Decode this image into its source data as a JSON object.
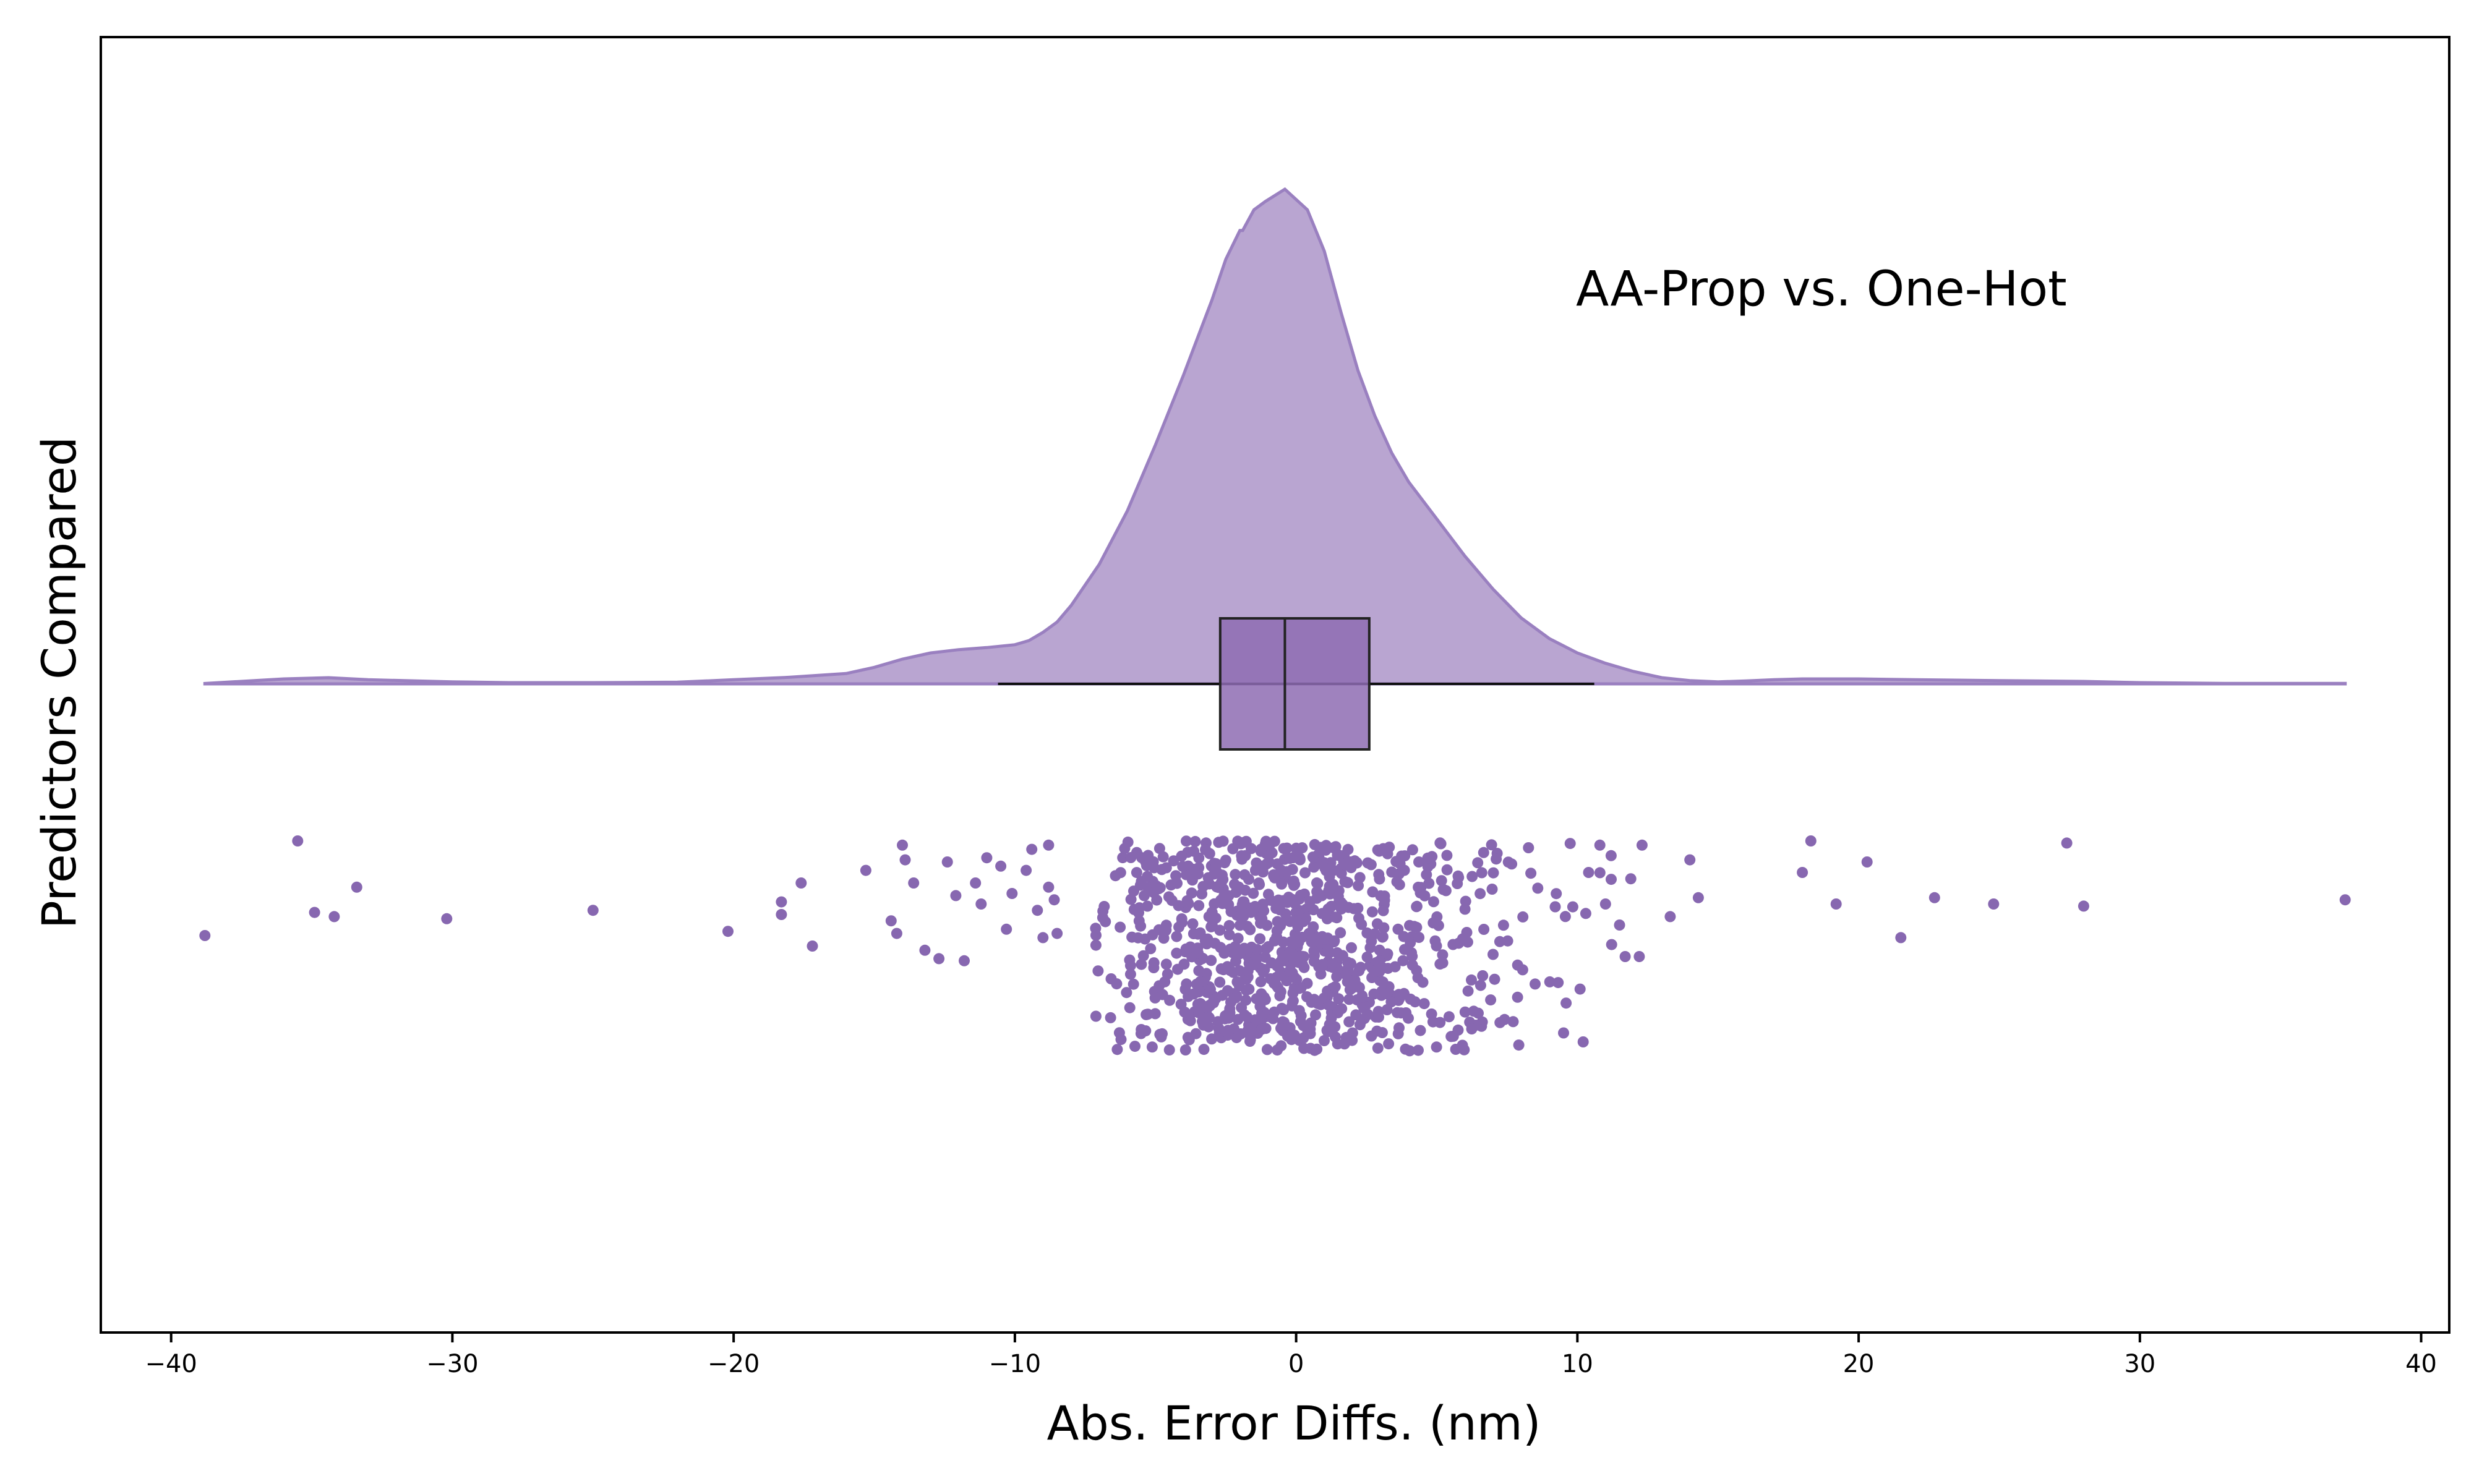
{
  "chart_data": {
    "type": "raincloud",
    "annotation": "AA-Prop vs. One-Hot",
    "xlabel": "Abs. Error Diffs. (nm)",
    "ylabel": "Predictors Compared",
    "xlim": [
      -42.5,
      41
    ],
    "xticks": [
      -40,
      -30,
      -20,
      -10,
      0,
      10,
      20,
      30,
      40
    ],
    "xtick_labels": [
      "−40",
      "−30",
      "−20",
      "−10",
      "0",
      "10",
      "20",
      "30",
      "40"
    ],
    "grid": false,
    "colors": {
      "fill": "#b9a5d1",
      "edge": "#9a80c0",
      "box": "#8e6cb3",
      "points": "#8767b0"
    },
    "box": {
      "q1": -2.7,
      "median": -0.4,
      "q3": 2.6,
      "whisker_low": -10.6,
      "whisker_high": 10.6
    },
    "density": {
      "x": [
        -38.8,
        -36,
        -34.4,
        -33,
        -30,
        -28,
        -25,
        -22,
        -20,
        -18,
        -16,
        -15,
        -14,
        -13,
        -12,
        -11,
        -10,
        -9.5,
        -9,
        -8.5,
        -8,
        -7,
        -6,
        -5,
        -4,
        -3.5,
        -3,
        -2.5,
        -2,
        -1.9,
        -1.5,
        -1.1,
        -0.4,
        0.4,
        1,
        1.6,
        2.2,
        2.8,
        3.4,
        4,
        5,
        6,
        7,
        8,
        9,
        10,
        11,
        12,
        13,
        14,
        15,
        16,
        17,
        18,
        20,
        22,
        25,
        28,
        30,
        33,
        35,
        37.3
      ],
      "y": [
        0.001,
        0.012,
        0.015,
        0.01,
        0.005,
        0.003,
        0.003,
        0.004,
        0.01,
        0.016,
        0.025,
        0.04,
        0.06,
        0.075,
        0.083,
        0.088,
        0.095,
        0.105,
        0.125,
        0.15,
        0.19,
        0.29,
        0.42,
        0.58,
        0.75,
        0.84,
        0.93,
        1.03,
        1.1,
        1.1,
        1.15,
        1.17,
        1.2,
        1.15,
        1.05,
        0.9,
        0.76,
        0.65,
        0.56,
        0.49,
        0.4,
        0.31,
        0.23,
        0.16,
        0.11,
        0.075,
        0.05,
        0.03,
        0.015,
        0.008,
        0.005,
        0.007,
        0.01,
        0.012,
        0.012,
        0.01,
        0.008,
        0.006,
        0.003,
        0.001,
        0.001,
        0.001
      ]
    },
    "points": [
      [
        -38.8,
        0.45
      ],
      [
        -35.5,
        0.0
      ],
      [
        -34.9,
        0.34
      ],
      [
        -34.2,
        0.36
      ],
      [
        -33.4,
        0.22
      ],
      [
        -30.2,
        0.37
      ],
      [
        -25,
        0.33
      ],
      [
        -20.2,
        0.43
      ],
      [
        -18.3,
        0.29
      ],
      [
        -18.3,
        0.35
      ],
      [
        -17.6,
        0.2
      ],
      [
        -17.2,
        0.5
      ],
      [
        -15.3,
        0.14
      ],
      [
        -14.4,
        0.38
      ],
      [
        -14.2,
        0.44
      ],
      [
        -14,
        0.02
      ],
      [
        -13.9,
        0.09
      ],
      [
        -13.6,
        0.2
      ],
      [
        -13.2,
        0.52
      ],
      [
        -12.7,
        0.56
      ],
      [
        -12.4,
        0.1
      ],
      [
        -12.1,
        0.26
      ],
      [
        -11.8,
        0.57
      ],
      [
        -11.4,
        0.2
      ],
      [
        -11.2,
        0.3
      ],
      [
        -11,
        0.08
      ],
      [
        -10.5,
        0.12
      ],
      [
        -10.3,
        0.42
      ],
      [
        -10.1,
        0.25
      ],
      [
        -9.6,
        0.14
      ],
      [
        -9.4,
        0.04
      ],
      [
        -9.2,
        0.33
      ],
      [
        -9,
        0.46
      ],
      [
        -8.8,
        0.22
      ],
      [
        -8.8,
        0.02
      ],
      [
        -8.6,
        0.28
      ],
      [
        -8.5,
        0.44
      ]
    ],
    "dense_cluster": {
      "x_range": [
        -7.2,
        12.1
      ],
      "count": 900,
      "center_sd": 4
    }
  }
}
